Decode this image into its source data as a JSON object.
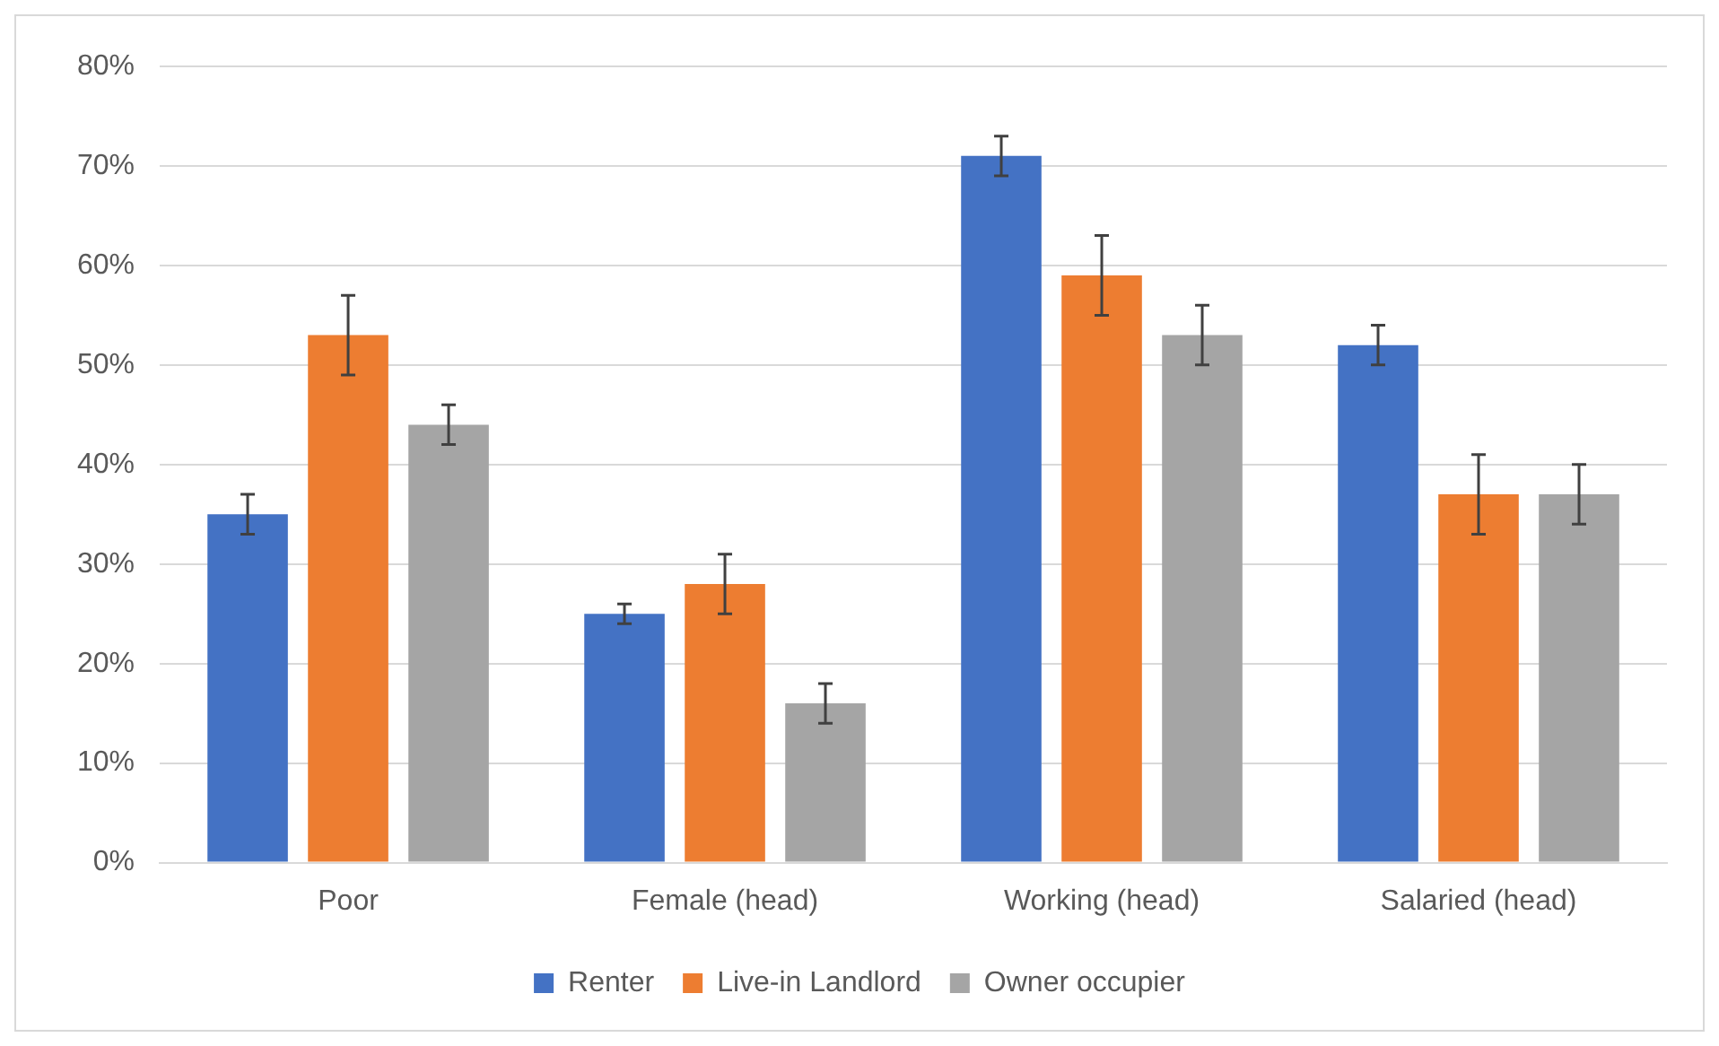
{
  "chart_data": {
    "type": "bar",
    "categories": [
      "Poor",
      "Female (head)",
      "Working (head)",
      "Salaried (head)"
    ],
    "series": [
      {
        "name": "Renter",
        "color": "#4472c4",
        "values": [
          35,
          25,
          71,
          52
        ],
        "errors": [
          2,
          1,
          2,
          2
        ]
      },
      {
        "name": "Live-in Landlord",
        "color": "#ed7d31",
        "values": [
          53,
          28,
          59,
          37
        ],
        "errors": [
          4,
          3,
          4,
          4
        ]
      },
      {
        "name": "Owner occupier",
        "color": "#a5a5a5",
        "values": [
          44,
          16,
          53,
          37
        ],
        "errors": [
          2,
          2,
          3,
          3
        ]
      }
    ],
    "ylim": [
      0,
      80
    ],
    "yticks": [
      {
        "value": 0,
        "label": "0%"
      },
      {
        "value": 10,
        "label": "10%"
      },
      {
        "value": 20,
        "label": "20%"
      },
      {
        "value": 30,
        "label": "30%"
      },
      {
        "value": 40,
        "label": "40%"
      },
      {
        "value": 50,
        "label": "50%"
      },
      {
        "value": 60,
        "label": "60%"
      },
      {
        "value": 70,
        "label": "70%"
      },
      {
        "value": 80,
        "label": "80%"
      }
    ],
    "grid": "y",
    "legend": "bottom"
  }
}
